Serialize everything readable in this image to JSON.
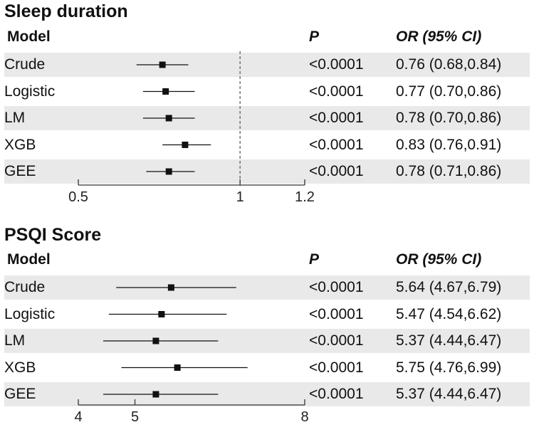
{
  "colors": {
    "band": "#e9e9e9",
    "mark": "#111111",
    "axis": "#333333",
    "refline": "#555555"
  },
  "chart_data": [
    {
      "type": "forest",
      "title": "Sleep duration",
      "header": {
        "model": "Model",
        "p": "P",
        "or": "OR (95% CI)"
      },
      "reference_value": 1,
      "axis": {
        "ticks": [
          0.5,
          1,
          1.2
        ],
        "tick_labels": [
          "0.5",
          "1",
          "1.2"
        ],
        "range": [
          0.5,
          1.2
        ]
      },
      "rows": [
        {
          "model": "Crude",
          "p": "<0.0001",
          "or_text": "0.76 (0.68,0.84)",
          "or": 0.76,
          "lo": 0.68,
          "hi": 0.84
        },
        {
          "model": "Logistic",
          "p": "<0.0001",
          "or_text": "0.77 (0.70,0.86)",
          "or": 0.77,
          "lo": 0.7,
          "hi": 0.86
        },
        {
          "model": "LM",
          "p": "<0.0001",
          "or_text": "0.78 (0.70,0.86)",
          "or": 0.78,
          "lo": 0.7,
          "hi": 0.86
        },
        {
          "model": "XGB",
          "p": "<0.0001",
          "or_text": "0.83 (0.76,0.91)",
          "or": 0.83,
          "lo": 0.76,
          "hi": 0.91
        },
        {
          "model": "GEE",
          "p": "<0.0001",
          "or_text": "0.78 (0.71,0.86)",
          "or": 0.78,
          "lo": 0.71,
          "hi": 0.86
        }
      ]
    },
    {
      "type": "forest",
      "title": "PSQI Score",
      "header": {
        "model": "Model",
        "p": "P",
        "or": "OR (95% CI)"
      },
      "reference_value": null,
      "axis": {
        "ticks": [
          4,
          5,
          8
        ],
        "tick_labels": [
          "4",
          "5",
          "8"
        ],
        "range": [
          4,
          8
        ]
      },
      "rows": [
        {
          "model": "Crude",
          "p": "<0.0001",
          "or_text": "5.64 (4.67,6.79)",
          "or": 5.64,
          "lo": 4.67,
          "hi": 6.79
        },
        {
          "model": "Logistic",
          "p": "<0.0001",
          "or_text": "5.47 (4.54,6.62)",
          "or": 5.47,
          "lo": 4.54,
          "hi": 6.62
        },
        {
          "model": "LM",
          "p": "<0.0001",
          "or_text": "5.37 (4.44,6.47)",
          "or": 5.37,
          "lo": 4.44,
          "hi": 6.47
        },
        {
          "model": "XGB",
          "p": "<0.0001",
          "or_text": "5.75 (4.76,6.99)",
          "or": 5.75,
          "lo": 4.76,
          "hi": 6.99
        },
        {
          "model": "GEE",
          "p": "<0.0001",
          "or_text": "5.37 (4.44,6.47)",
          "or": 5.37,
          "lo": 4.44,
          "hi": 6.47
        }
      ]
    }
  ]
}
